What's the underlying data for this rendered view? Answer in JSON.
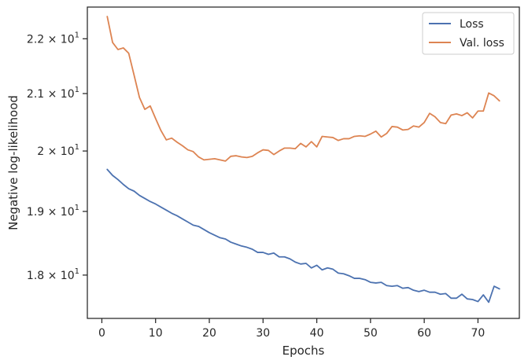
{
  "chart_data": {
    "type": "line",
    "xlabel": "Epochs",
    "ylabel": "Negative log-likelihood",
    "xlim": [
      -2.7,
      77.7
    ],
    "ylim": [
      17.35,
      22.6
    ],
    "y_scale": "log",
    "grid": false,
    "legend_position": "top-right",
    "x_ticks": [
      0,
      10,
      20,
      30,
      40,
      50,
      60,
      70
    ],
    "y_ticks": [
      {
        "value": 18,
        "mantissa": "1.8",
        "base": "10",
        "exp": "1"
      },
      {
        "value": 19,
        "mantissa": "1.9",
        "base": "10",
        "exp": "1"
      },
      {
        "value": 20,
        "mantissa": "2",
        "base": "10",
        "exp": "1"
      },
      {
        "value": 21,
        "mantissa": "2.1",
        "base": "10",
        "exp": "1"
      },
      {
        "value": 22,
        "mantissa": "2.2",
        "base": "10",
        "exp": "1"
      }
    ],
    "series": [
      {
        "name": "Loss",
        "color": "#4c72b0",
        "x": [
          1,
          2,
          3,
          4,
          5,
          6,
          7,
          8,
          9,
          10,
          11,
          12,
          13,
          14,
          15,
          16,
          17,
          18,
          19,
          20,
          21,
          22,
          23,
          24,
          25,
          26,
          27,
          28,
          29,
          30,
          31,
          32,
          33,
          34,
          35,
          36,
          37,
          38,
          39,
          40,
          41,
          42,
          43,
          44,
          45,
          46,
          47,
          48,
          49,
          50,
          51,
          52,
          53,
          54,
          55,
          56,
          57,
          58,
          59,
          60,
          61,
          62,
          63,
          64,
          65,
          66,
          67,
          68,
          69,
          70,
          71,
          72,
          73,
          74
        ],
        "values": [
          19.69,
          19.59,
          19.52,
          19.44,
          19.37,
          19.33,
          19.26,
          19.21,
          19.16,
          19.12,
          19.07,
          19.02,
          18.97,
          18.93,
          18.88,
          18.83,
          18.78,
          18.76,
          18.71,
          18.66,
          18.62,
          18.58,
          18.56,
          18.51,
          18.48,
          18.45,
          18.43,
          18.4,
          18.35,
          18.35,
          18.32,
          18.34,
          18.28,
          18.28,
          18.25,
          18.2,
          18.17,
          18.18,
          18.11,
          18.15,
          18.08,
          18.11,
          18.09,
          18.03,
          18.02,
          17.99,
          17.95,
          17.95,
          17.93,
          17.89,
          17.88,
          17.89,
          17.84,
          17.83,
          17.84,
          17.8,
          17.81,
          17.77,
          17.75,
          17.77,
          17.74,
          17.74,
          17.71,
          17.72,
          17.65,
          17.65,
          17.71,
          17.64,
          17.63,
          17.6,
          17.7,
          17.59,
          17.83,
          17.79
        ]
      },
      {
        "name": "Val. loss",
        "color": "#dd8452",
        "x": [
          1,
          2,
          3,
          4,
          5,
          6,
          7,
          8,
          9,
          10,
          11,
          12,
          13,
          14,
          15,
          16,
          17,
          18,
          19,
          20,
          21,
          22,
          23,
          24,
          25,
          26,
          27,
          28,
          29,
          30,
          31,
          32,
          33,
          34,
          35,
          36,
          37,
          38,
          39,
          40,
          41,
          42,
          43,
          44,
          45,
          46,
          47,
          48,
          49,
          50,
          51,
          52,
          53,
          54,
          55,
          56,
          57,
          58,
          59,
          60,
          61,
          62,
          63,
          64,
          65,
          66,
          67,
          68,
          69,
          70,
          71,
          72,
          73,
          74
        ],
        "values": [
          22.42,
          21.93,
          21.8,
          21.83,
          21.73,
          21.33,
          20.93,
          20.72,
          20.78,
          20.56,
          20.35,
          20.19,
          20.22,
          20.15,
          20.09,
          20.02,
          19.99,
          19.9,
          19.85,
          19.86,
          19.87,
          19.85,
          19.83,
          19.91,
          19.92,
          19.9,
          19.89,
          19.91,
          19.97,
          20.02,
          20.01,
          19.94,
          20.0,
          20.05,
          20.05,
          20.04,
          20.13,
          20.07,
          20.16,
          20.07,
          20.25,
          20.24,
          20.23,
          20.18,
          20.21,
          20.21,
          20.25,
          20.26,
          20.25,
          20.29,
          20.34,
          20.24,
          20.3,
          20.42,
          20.41,
          20.36,
          20.37,
          20.43,
          20.41,
          20.49,
          20.65,
          20.59,
          20.49,
          20.47,
          20.62,
          20.64,
          20.61,
          20.66,
          20.57,
          20.69,
          20.69,
          21.01,
          20.96,
          20.87
        ]
      }
    ]
  }
}
